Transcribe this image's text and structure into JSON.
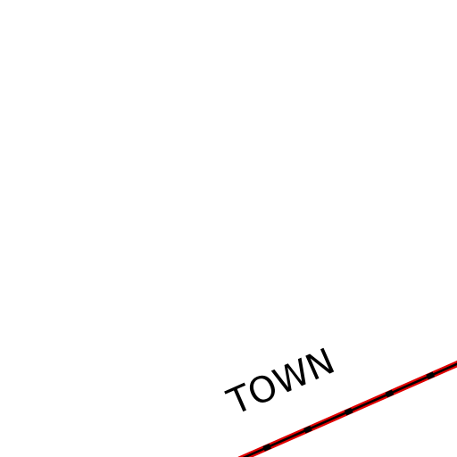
{
  "map": {
    "labels": [
      "TOWN"
    ]
  }
}
